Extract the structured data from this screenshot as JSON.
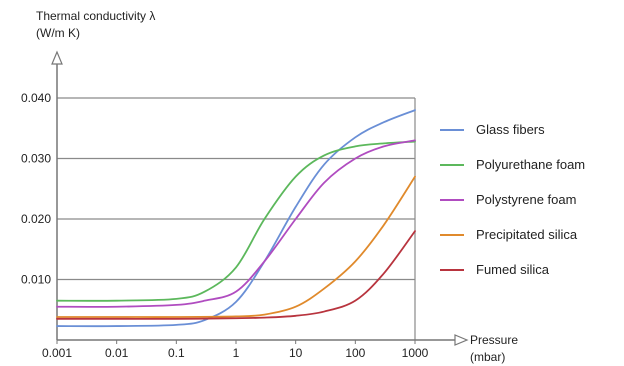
{
  "chart_data": {
    "type": "line",
    "y_axis": {
      "label_line1": "Thermal conductivity λ",
      "label_line2": "(W/m K)",
      "range": [
        0,
        0.04
      ],
      "ticks": [
        {
          "value": 0.01,
          "label": "0.010"
        },
        {
          "value": 0.02,
          "label": "0.020"
        },
        {
          "value": 0.03,
          "label": "0.030"
        },
        {
          "value": 0.04,
          "label": "0.040"
        }
      ]
    },
    "x_axis": {
      "label_line1": "Pressure",
      "label_line2": "(mbar)",
      "scale": "log",
      "range": [
        0.001,
        1000
      ],
      "ticks": [
        {
          "value": 0.001,
          "label": "0.001"
        },
        {
          "value": 0.01,
          "label": "0.01"
        },
        {
          "value": 0.1,
          "label": "0.1"
        },
        {
          "value": 1,
          "label": "1"
        },
        {
          "value": 10,
          "label": "10"
        },
        {
          "value": 100,
          "label": "100"
        },
        {
          "value": 1000,
          "label": "1000"
        }
      ]
    },
    "grid": "horizontal",
    "legend_position": "right",
    "series": [
      {
        "name": "Glass fibers",
        "color": "#6a8fd6",
        "points": [
          [
            0.001,
            0.0023
          ],
          [
            0.01,
            0.0023
          ],
          [
            0.1,
            0.0025
          ],
          [
            0.3,
            0.0033
          ],
          [
            1,
            0.0063
          ],
          [
            3,
            0.013
          ],
          [
            10,
            0.022
          ],
          [
            30,
            0.029
          ],
          [
            100,
            0.0335
          ],
          [
            300,
            0.036
          ],
          [
            1000,
            0.038
          ]
        ]
      },
      {
        "name": "Polyurethane foam",
        "color": "#5cb85c",
        "points": [
          [
            0.001,
            0.0065
          ],
          [
            0.01,
            0.0065
          ],
          [
            0.1,
            0.0068
          ],
          [
            0.3,
            0.008
          ],
          [
            1,
            0.012
          ],
          [
            3,
            0.02
          ],
          [
            10,
            0.027
          ],
          [
            30,
            0.0305
          ],
          [
            100,
            0.032
          ],
          [
            300,
            0.0325
          ],
          [
            1000,
            0.0328
          ]
        ]
      },
      {
        "name": "Polystyrene foam",
        "color": "#b04cc0",
        "points": [
          [
            0.001,
            0.0055
          ],
          [
            0.01,
            0.0055
          ],
          [
            0.1,
            0.0058
          ],
          [
            0.3,
            0.0065
          ],
          [
            1,
            0.008
          ],
          [
            3,
            0.013
          ],
          [
            10,
            0.02
          ],
          [
            30,
            0.026
          ],
          [
            100,
            0.03
          ],
          [
            300,
            0.032
          ],
          [
            1000,
            0.033
          ]
        ]
      },
      {
        "name": "Precipitated silica",
        "color": "#e08a2c",
        "points": [
          [
            0.001,
            0.0038
          ],
          [
            0.01,
            0.0038
          ],
          [
            0.1,
            0.0038
          ],
          [
            1,
            0.0039
          ],
          [
            3,
            0.0042
          ],
          [
            10,
            0.0055
          ],
          [
            30,
            0.0085
          ],
          [
            100,
            0.013
          ],
          [
            300,
            0.019
          ],
          [
            1000,
            0.027
          ]
        ]
      },
      {
        "name": "Fumed silica",
        "color": "#b8343e",
        "points": [
          [
            0.001,
            0.0035
          ],
          [
            0.01,
            0.0035
          ],
          [
            0.1,
            0.0035
          ],
          [
            1,
            0.0036
          ],
          [
            3,
            0.0037
          ],
          [
            10,
            0.004
          ],
          [
            30,
            0.0047
          ],
          [
            100,
            0.0065
          ],
          [
            300,
            0.011
          ],
          [
            1000,
            0.018
          ]
        ]
      }
    ]
  }
}
